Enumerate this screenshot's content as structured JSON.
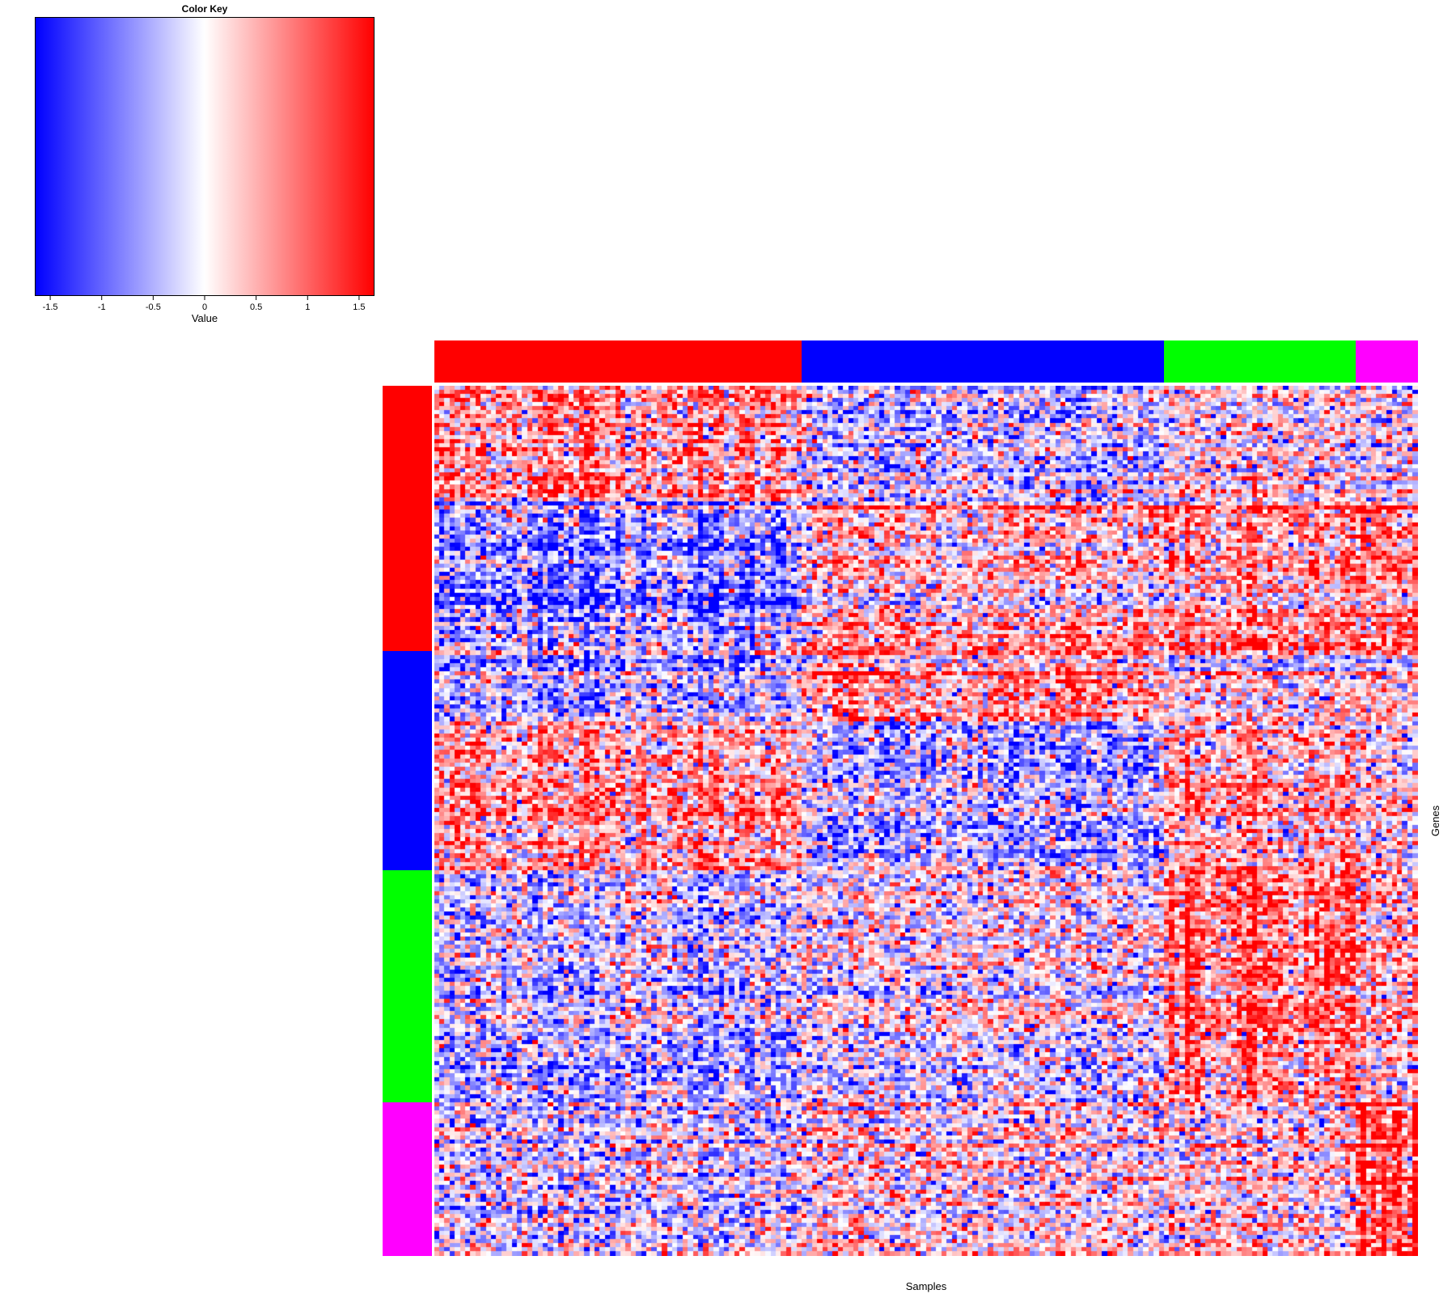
{
  "chart_data": {
    "type": "heatmap",
    "color_key": {
      "title": "Color Key",
      "xlabel": "Value",
      "range": [
        -1.65,
        1.65
      ],
      "colors": {
        "low": "#0000ff",
        "mid": "#ffffff",
        "high": "#ff0000"
      },
      "ticks": [
        -1.5,
        -1,
        -0.5,
        0,
        0.5,
        1,
        1.5
      ],
      "tick_labels": [
        "-1.5",
        "-1",
        "-0.5",
        "0",
        "0.5",
        "1",
        "1.5"
      ]
    },
    "xlabel": "Samples",
    "ylabel": "Genes",
    "n_samples": 190,
    "n_genes": 210,
    "sample_groups": [
      {
        "name": "red",
        "color": "#ff0000",
        "count": 71
      },
      {
        "name": "blue",
        "color": "#0000ff",
        "count": 70
      },
      {
        "name": "green",
        "color": "#00ff00",
        "count": 37
      },
      {
        "name": "magenta",
        "color": "#ff00ff",
        "count": 12
      }
    ],
    "gene_groups": [
      {
        "name": "red",
        "color": "#ff0000",
        "count": 64
      },
      {
        "name": "blue",
        "color": "#0000ff",
        "count": 53
      },
      {
        "name": "green",
        "color": "#00ff00",
        "count": 56
      },
      {
        "name": "magenta",
        "color": "#ff00ff",
        "count": 37
      }
    ],
    "gene_block_pattern": [
      {
        "rows": 28,
        "sample_means": [
          0.75,
          -0.45,
          0.1,
          -0.1
        ]
      },
      {
        "rows": 36,
        "sample_means": [
          -0.9,
          0.4,
          0.75,
          0.8
        ]
      },
      {
        "rows": 17,
        "sample_means": [
          -0.55,
          0.75,
          0.1,
          0.2
        ]
      },
      {
        "rows": 36,
        "sample_means": [
          0.75,
          -0.55,
          0.55,
          0.15
        ]
      },
      {
        "rows": 56,
        "sample_means": [
          -0.5,
          -0.1,
          0.95,
          0.4
        ]
      },
      {
        "rows": 37,
        "sample_means": [
          -0.35,
          0.05,
          0.15,
          1.15
        ]
      }
    ]
  }
}
